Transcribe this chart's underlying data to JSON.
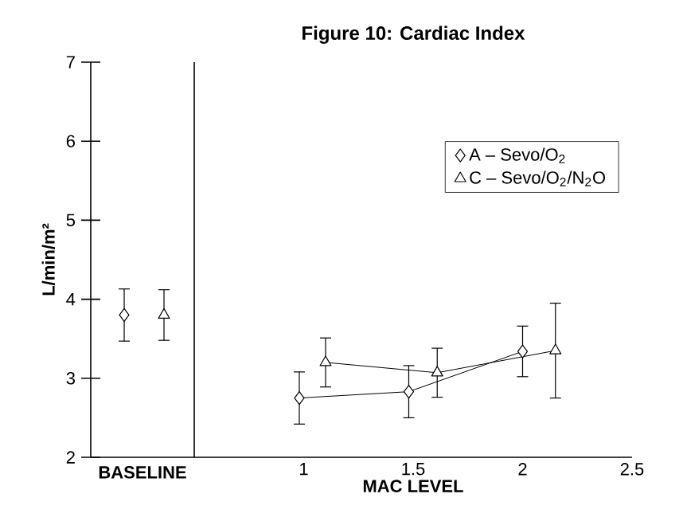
{
  "chart_data": [
    {
      "type": "scatter",
      "xlabel": "BASELINE",
      "ylabel": "L/min/m²",
      "categories": [
        null,
        null
      ],
      "ylim": [
        2,
        7
      ],
      "yticks": [
        2,
        3,
        4,
        5,
        6,
        7
      ],
      "tick_labels": "y",
      "series": [
        {
          "color": "#000000",
          "marker": "diamond",
          "values": [
            3.8,
            null
          ],
          "errors": [
            0.33,
            null
          ]
        },
        {
          "color": "#000000",
          "marker": "triangle",
          "values": [
            null,
            3.8
          ],
          "errors": [
            null,
            0.32
          ]
        }
      ]
    },
    {
      "type": "line",
      "title": "Figure 10: Cardiac Index",
      "xlabel": "MAC LEVEL",
      "xlim": [
        0.5,
        2.5
      ],
      "xticks": [
        1,
        1.5,
        2,
        2.5
      ],
      "ylim": [
        2,
        7
      ],
      "tick_labels": "x",
      "legend": "top right",
      "series": [
        {
          "name": "A – Sevo/O$_{2}$",
          "color": "#000000",
          "marker": "diamond",
          "x": [
            0.98,
            1.48,
            2.0
          ],
          "values": [
            2.75,
            2.83,
            3.34
          ],
          "errors": [
            0.33,
            0.33,
            0.32
          ]
        },
        {
          "name": "C – Sevo/O$_{2}$/N$_{2}$O",
          "color": "#000000",
          "marker": "triangle",
          "x": [
            1.1,
            1.61,
            2.15
          ],
          "values": [
            3.2,
            3.07,
            3.35
          ],
          "errors": [
            0.31,
            0.31,
            0.6
          ]
        }
      ]
    }
  ]
}
